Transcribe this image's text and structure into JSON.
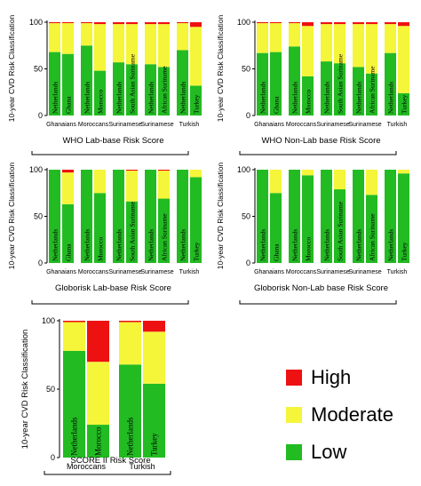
{
  "chart_data": [
    {
      "type": "bar",
      "stacked": true,
      "orientation": "vertical",
      "title": "WHO Lab-base Risk Score",
      "ylabel": "10-year CVD Risk Classification",
      "ylim": [
        0,
        100
      ],
      "yticks": [
        0,
        50,
        100
      ],
      "groups": [
        "Ghanaians",
        "Moroccans",
        "Surinamese",
        "Surinamese",
        "Turkish"
      ],
      "categories": [
        "Netherlands",
        "Ghana",
        "Netherlands",
        "Morocco",
        "Netherlands",
        "South Asian Suriname",
        "Netherlands",
        "African Suriname",
        "Netherlands",
        "Turkey"
      ],
      "series": [
        {
          "name": "Low",
          "values": [
            68,
            66,
            75,
            48,
            57,
            55,
            55,
            52,
            70,
            32
          ]
        },
        {
          "name": "Moderate",
          "values": [
            31,
            33,
            24,
            50,
            41,
            43,
            43,
            46,
            29,
            63
          ]
        },
        {
          "name": "High",
          "values": [
            1,
            1,
            1,
            2,
            2,
            2,
            2,
            2,
            1,
            5
          ]
        }
      ]
    },
    {
      "type": "bar",
      "stacked": true,
      "orientation": "vertical",
      "title": "WHO Non-Lab base Risk Score",
      "ylabel": "10-year CVD Risk Classification",
      "ylim": [
        0,
        100
      ],
      "yticks": [
        0,
        50,
        100
      ],
      "groups": [
        "Ghanaians",
        "Moroccans",
        "Surinamese",
        "Surinamese",
        "Turkish"
      ],
      "categories": [
        "Netherlands",
        "Ghana",
        "Netherlands",
        "Morocco",
        "Netherlands",
        "South Asian Suriname",
        "Netherlands",
        "African Suriname",
        "Netherlands",
        "Turkey"
      ],
      "series": [
        {
          "name": "Low",
          "values": [
            67,
            68,
            74,
            42,
            58,
            56,
            52,
            45,
            67,
            24
          ]
        },
        {
          "name": "Moderate",
          "values": [
            32,
            31,
            25,
            54,
            40,
            42,
            46,
            53,
            31,
            72
          ]
        },
        {
          "name": "High",
          "values": [
            1,
            1,
            1,
            4,
            2,
            2,
            2,
            2,
            2,
            4
          ]
        }
      ]
    },
    {
      "type": "bar",
      "stacked": true,
      "orientation": "vertical",
      "title": "Globorisk Lab-base Risk Score",
      "ylabel": "10-year CVD Risk Classification",
      "ylim": [
        0,
        100
      ],
      "yticks": [
        0,
        50,
        100
      ],
      "groups": [
        "Ghanaians",
        "Moroccans",
        "Surinamese",
        "Surinamese",
        "Turkish"
      ],
      "categories": [
        "Netherlands",
        "Ghana",
        "Netherlands",
        "Morocco",
        "Netherlands",
        "South Asian Suriname",
        "Netherlands",
        "African Suriname",
        "Netherlands",
        "Turkey"
      ],
      "series": [
        {
          "name": "Low",
          "values": [
            100,
            63,
            100,
            75,
            100,
            66,
            100,
            69,
            100,
            92
          ]
        },
        {
          "name": "Moderate",
          "values": [
            0,
            34,
            0,
            25,
            0,
            33,
            0,
            30,
            0,
            8
          ]
        },
        {
          "name": "High",
          "values": [
            0,
            3,
            0,
            0,
            0,
            1,
            0,
            1,
            0,
            0
          ]
        }
      ]
    },
    {
      "type": "bar",
      "stacked": true,
      "orientation": "vertical",
      "title": "Globorisk Non-Lab base Risk Score",
      "ylabel": "10-year CVD Risk Classification",
      "ylim": [
        0,
        100
      ],
      "yticks": [
        0,
        50,
        100
      ],
      "groups": [
        "Ghanaians",
        "Moroccans",
        "Surinamese",
        "Surinamese",
        "Turkish"
      ],
      "categories": [
        "Netherlands",
        "Ghana",
        "Netherlands",
        "Morocco",
        "Netherlands",
        "South Asian Suriname",
        "Netherlands",
        "African Suriname",
        "Netherlands",
        "Turkey"
      ],
      "series": [
        {
          "name": "Low",
          "values": [
            100,
            75,
            100,
            94,
            100,
            79,
            100,
            73,
            100,
            96
          ]
        },
        {
          "name": "Moderate",
          "values": [
            0,
            25,
            0,
            6,
            0,
            21,
            0,
            27,
            0,
            4
          ]
        },
        {
          "name": "High",
          "values": [
            0,
            0,
            0,
            0,
            0,
            0,
            0,
            0,
            0,
            0
          ]
        }
      ]
    },
    {
      "type": "bar",
      "stacked": true,
      "orientation": "vertical",
      "title": "SCORE II  Risk Score",
      "ylabel": "10-year CVD Risk Classification",
      "ylim": [
        0,
        100
      ],
      "yticks": [
        0,
        50,
        100
      ],
      "groups": [
        "Moroccans",
        "Turkish"
      ],
      "categories": [
        "Netherlands",
        "Morocco",
        "Netherlands",
        "Turkey"
      ],
      "series": [
        {
          "name": "Low",
          "values": [
            78,
            24,
            68,
            54
          ]
        },
        {
          "name": "Moderate",
          "values": [
            21,
            46,
            31,
            38
          ]
        },
        {
          "name": "High",
          "values": [
            1,
            30,
            1,
            8
          ]
        }
      ]
    }
  ],
  "legend": {
    "items": [
      {
        "label": "High",
        "color": "#ee1111"
      },
      {
        "label": "Moderate",
        "color": "#f5f53a"
      },
      {
        "label": "Low",
        "color": "#22bb22"
      }
    ]
  },
  "colors": {
    "low": "#22bb22",
    "moderate": "#f5f53a",
    "high": "#ee1111"
  }
}
